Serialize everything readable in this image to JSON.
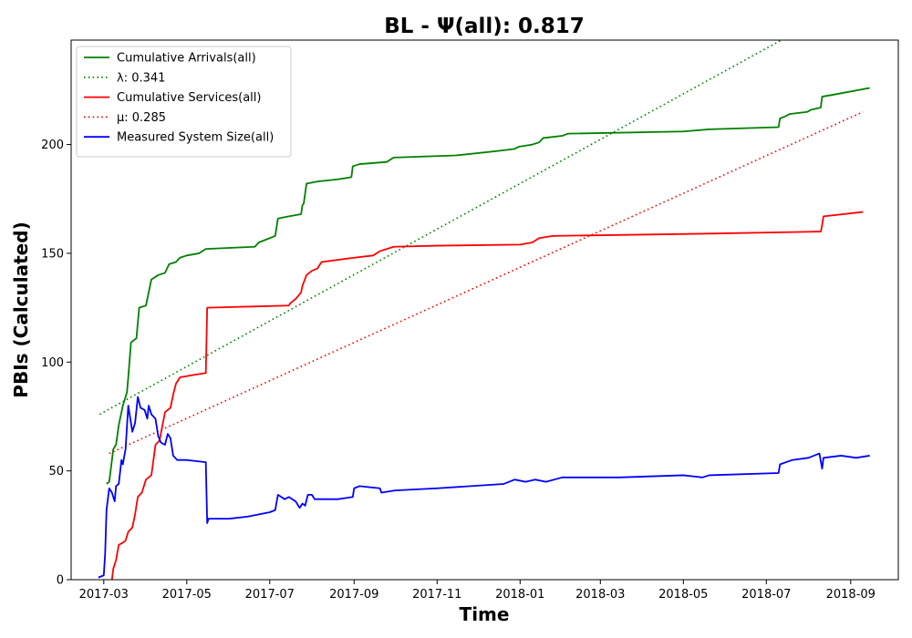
{
  "chart_data": {
    "type": "line",
    "title": "BL -  Ψ(all): 0.817",
    "xlabel": "Time",
    "ylabel": "PBIs (Calculated)",
    "xlim": [
      "2017-02-05",
      "2018-10-06"
    ],
    "ylim": [
      0,
      248
    ],
    "x_ticks": [
      "2017-03",
      "2017-05",
      "2017-07",
      "2017-09",
      "2017-11",
      "2018-01",
      "2018-03",
      "2018-05",
      "2018-07",
      "2018-09"
    ],
    "y_ticks": [
      0,
      50,
      100,
      150,
      200
    ],
    "grid": false,
    "legend_position": "upper-left",
    "series": [
      {
        "name": "Cumulative Arrivals(all)",
        "color": "#008000",
        "style": "solid",
        "points": [
          [
            "2017-03-03",
            44
          ],
          [
            "2017-03-05",
            45
          ],
          [
            "2017-03-08",
            60
          ],
          [
            "2017-03-10",
            62
          ],
          [
            "2017-03-12",
            71
          ],
          [
            "2017-03-15",
            80
          ],
          [
            "2017-03-18",
            86
          ],
          [
            "2017-03-19",
            93
          ],
          [
            "2017-03-21",
            109
          ],
          [
            "2017-03-25",
            111
          ],
          [
            "2017-03-27",
            125
          ],
          [
            "2017-04-01",
            126
          ],
          [
            "2017-04-05",
            138
          ],
          [
            "2017-04-10",
            140
          ],
          [
            "2017-04-15",
            141
          ],
          [
            "2017-04-18",
            145
          ],
          [
            "2017-04-23",
            146
          ],
          [
            "2017-04-26",
            148
          ],
          [
            "2017-05-01",
            149
          ],
          [
            "2017-05-10",
            150
          ],
          [
            "2017-05-15",
            152
          ],
          [
            "2017-06-01",
            152.5
          ],
          [
            "2017-06-20",
            153
          ],
          [
            "2017-06-23",
            155
          ],
          [
            "2017-07-01",
            157
          ],
          [
            "2017-07-05",
            158
          ],
          [
            "2017-07-07",
            166
          ],
          [
            "2017-07-15",
            167
          ],
          [
            "2017-07-24",
            168
          ],
          [
            "2017-07-25",
            172
          ],
          [
            "2017-07-26",
            173
          ],
          [
            "2017-07-28",
            182
          ],
          [
            "2017-08-05",
            183
          ],
          [
            "2017-08-20",
            184
          ],
          [
            "2017-08-30",
            185
          ],
          [
            "2017-08-31",
            190
          ],
          [
            "2017-09-05",
            191
          ],
          [
            "2017-09-25",
            192
          ],
          [
            "2017-09-30",
            194
          ],
          [
            "2017-11-15",
            195
          ],
          [
            "2017-12-15",
            197
          ],
          [
            "2017-12-28",
            198
          ],
          [
            "2017-12-31",
            199
          ],
          [
            "2018-01-10",
            200
          ],
          [
            "2018-01-15",
            201
          ],
          [
            "2018-01-18",
            203
          ],
          [
            "2018-02-01",
            204
          ],
          [
            "2018-02-05",
            205
          ],
          [
            "2018-05-01",
            206
          ],
          [
            "2018-05-20",
            207
          ],
          [
            "2018-07-10",
            208
          ],
          [
            "2018-07-11",
            212
          ],
          [
            "2018-07-15",
            213
          ],
          [
            "2018-07-18",
            214
          ],
          [
            "2018-07-31",
            215
          ],
          [
            "2018-08-03",
            216
          ],
          [
            "2018-08-10",
            217
          ],
          [
            "2018-08-11",
            222
          ],
          [
            "2018-08-20",
            223
          ],
          [
            "2018-09-15",
            226
          ]
        ]
      },
      {
        "name": "λ: 0.341",
        "color": "#008000",
        "style": "dotted",
        "points": [
          [
            "2017-02-26",
            76
          ],
          [
            "2018-07-12",
            248
          ]
        ]
      },
      {
        "name": "Cumulative Services(all)",
        "color": "#ff0000",
        "style": "solid",
        "points": [
          [
            "2017-03-07",
            0
          ],
          [
            "2017-03-08",
            5
          ],
          [
            "2017-03-10",
            9
          ],
          [
            "2017-03-12",
            16
          ],
          [
            "2017-03-15",
            17
          ],
          [
            "2017-03-17",
            18
          ],
          [
            "2017-03-19",
            22
          ],
          [
            "2017-03-22",
            24
          ],
          [
            "2017-03-24",
            30
          ],
          [
            "2017-03-26",
            38
          ],
          [
            "2017-03-29",
            40
          ],
          [
            "2017-04-01",
            46
          ],
          [
            "2017-04-05",
            48
          ],
          [
            "2017-04-08",
            62
          ],
          [
            "2017-04-11",
            64
          ],
          [
            "2017-04-15",
            77
          ],
          [
            "2017-04-19",
            79
          ],
          [
            "2017-04-21",
            85
          ],
          [
            "2017-04-23",
            90
          ],
          [
            "2017-04-26",
            93
          ],
          [
            "2017-05-05",
            94
          ],
          [
            "2017-05-15",
            95
          ],
          [
            "2017-05-16",
            125
          ],
          [
            "2017-06-15",
            125.5
          ],
          [
            "2017-07-15",
            126
          ],
          [
            "2017-07-16",
            127
          ],
          [
            "2017-07-20",
            129
          ],
          [
            "2017-07-24",
            132
          ],
          [
            "2017-07-25",
            135
          ],
          [
            "2017-07-28",
            140
          ],
          [
            "2017-08-01",
            142
          ],
          [
            "2017-08-05",
            143
          ],
          [
            "2017-08-08",
            146
          ],
          [
            "2017-09-01",
            148
          ],
          [
            "2017-09-15",
            149
          ],
          [
            "2017-09-20",
            151
          ],
          [
            "2017-09-30",
            153
          ],
          [
            "2017-11-01",
            153.5
          ],
          [
            "2018-01-01",
            154
          ],
          [
            "2018-01-10",
            155
          ],
          [
            "2018-01-15",
            157
          ],
          [
            "2018-01-25",
            158
          ],
          [
            "2018-05-15",
            159
          ],
          [
            "2018-08-10",
            160
          ],
          [
            "2018-08-11",
            163
          ],
          [
            "2018-08-12",
            167
          ],
          [
            "2018-09-10",
            169
          ]
        ]
      },
      {
        "name": "μ: 0.285",
        "color": "#ff0000",
        "style": "dotted",
        "points": [
          [
            "2017-03-05",
            58
          ],
          [
            "2018-09-10",
            215
          ]
        ]
      },
      {
        "name": "Measured System Size(all)",
        "color": "#0000ff",
        "style": "solid",
        "points": [
          [
            "2017-02-25",
            1
          ],
          [
            "2017-03-01",
            2
          ],
          [
            "2017-03-02",
            12
          ],
          [
            "2017-03-03",
            32
          ],
          [
            "2017-03-05",
            42
          ],
          [
            "2017-03-07",
            40
          ],
          [
            "2017-03-09",
            36
          ],
          [
            "2017-03-10",
            43
          ],
          [
            "2017-03-12",
            44
          ],
          [
            "2017-03-14",
            55
          ],
          [
            "2017-03-15",
            53
          ],
          [
            "2017-03-17",
            60
          ],
          [
            "2017-03-19",
            80
          ],
          [
            "2017-03-20",
            76
          ],
          [
            "2017-03-22",
            68
          ],
          [
            "2017-03-24",
            72
          ],
          [
            "2017-03-26",
            84
          ],
          [
            "2017-03-28",
            79
          ],
          [
            "2017-03-31",
            78
          ],
          [
            "2017-04-02",
            74
          ],
          [
            "2017-04-03",
            80
          ],
          [
            "2017-04-05",
            76
          ],
          [
            "2017-04-08",
            74
          ],
          [
            "2017-04-10",
            66
          ],
          [
            "2017-04-12",
            63
          ],
          [
            "2017-04-15",
            62
          ],
          [
            "2017-04-17",
            67
          ],
          [
            "2017-04-19",
            65
          ],
          [
            "2017-04-21",
            57
          ],
          [
            "2017-04-24",
            55
          ],
          [
            "2017-05-01",
            55
          ],
          [
            "2017-05-15",
            54
          ],
          [
            "2017-05-16",
            26
          ],
          [
            "2017-05-17",
            28
          ],
          [
            "2017-06-01",
            28
          ],
          [
            "2017-06-15",
            29
          ],
          [
            "2017-07-01",
            31
          ],
          [
            "2017-07-05",
            32
          ],
          [
            "2017-07-07",
            39
          ],
          [
            "2017-07-12",
            37
          ],
          [
            "2017-07-15",
            38
          ],
          [
            "2017-07-20",
            36
          ],
          [
            "2017-07-23",
            33
          ],
          [
            "2017-07-25",
            35
          ],
          [
            "2017-07-27",
            34
          ],
          [
            "2017-07-29",
            39
          ],
          [
            "2017-08-01",
            39
          ],
          [
            "2017-08-03",
            37
          ],
          [
            "2017-08-20",
            37
          ],
          [
            "2017-08-31",
            38
          ],
          [
            "2017-09-01",
            42
          ],
          [
            "2017-09-05",
            43
          ],
          [
            "2017-09-20",
            42
          ],
          [
            "2017-09-21",
            40
          ],
          [
            "2017-10-01",
            41
          ],
          [
            "2017-11-01",
            42
          ],
          [
            "2017-12-20",
            44
          ],
          [
            "2017-12-28",
            46
          ],
          [
            "2018-01-05",
            45
          ],
          [
            "2018-01-12",
            46
          ],
          [
            "2018-01-20",
            45
          ],
          [
            "2018-02-01",
            47
          ],
          [
            "2018-03-15",
            47
          ],
          [
            "2018-05-01",
            48
          ],
          [
            "2018-05-15",
            47
          ],
          [
            "2018-05-20",
            48
          ],
          [
            "2018-07-10",
            49
          ],
          [
            "2018-07-11",
            53
          ],
          [
            "2018-07-20",
            55
          ],
          [
            "2018-08-01",
            56
          ],
          [
            "2018-08-09",
            58
          ],
          [
            "2018-08-11",
            51
          ],
          [
            "2018-08-12",
            56
          ],
          [
            "2018-08-25",
            57
          ],
          [
            "2018-09-05",
            56
          ],
          [
            "2018-09-15",
            57
          ]
        ]
      }
    ]
  }
}
